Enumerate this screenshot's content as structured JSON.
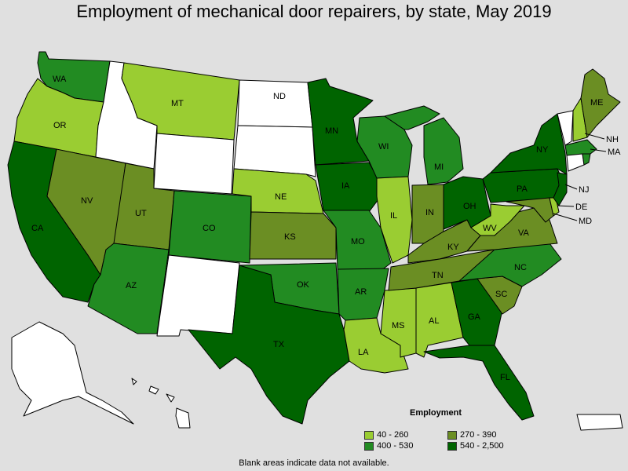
{
  "title": "Employment of mechanical door repairers, by state, May 2019",
  "footnote": "Blank areas indicate data not available.",
  "colors": {
    "background": "#e0e0e0",
    "none": "#ffffff",
    "c1": "#9acd32",
    "c2": "#6b8e23",
    "c3": "#228b22",
    "c4": "#006400"
  },
  "legend": {
    "title": "Employment",
    "items": [
      {
        "label": "40 - 260",
        "cls": "c1"
      },
      {
        "label": "270 - 390",
        "cls": "c2"
      },
      {
        "label": "400 - 530",
        "cls": "c3"
      },
      {
        "label": "540 - 2,500",
        "cls": "c4"
      }
    ]
  },
  "states": [
    {
      "abbr": "WA",
      "cls": "c3"
    },
    {
      "abbr": "OR",
      "cls": "c1"
    },
    {
      "abbr": "CA",
      "cls": "c4"
    },
    {
      "abbr": "ID",
      "cls": "none"
    },
    {
      "abbr": "NV",
      "cls": "c2"
    },
    {
      "abbr": "MT",
      "cls": "c1"
    },
    {
      "abbr": "WY",
      "cls": "none"
    },
    {
      "abbr": "UT",
      "cls": "c2"
    },
    {
      "abbr": "AZ",
      "cls": "c3"
    },
    {
      "abbr": "CO",
      "cls": "c3"
    },
    {
      "abbr": "NM",
      "cls": "none"
    },
    {
      "abbr": "ND",
      "cls": "none"
    },
    {
      "abbr": "SD",
      "cls": "none"
    },
    {
      "abbr": "NE",
      "cls": "c1"
    },
    {
      "abbr": "KS",
      "cls": "c2"
    },
    {
      "abbr": "OK",
      "cls": "c3"
    },
    {
      "abbr": "TX",
      "cls": "c4"
    },
    {
      "abbr": "MN",
      "cls": "c4"
    },
    {
      "abbr": "IA",
      "cls": "c4"
    },
    {
      "abbr": "MO",
      "cls": "c3"
    },
    {
      "abbr": "AR",
      "cls": "c3"
    },
    {
      "abbr": "LA",
      "cls": "c1"
    },
    {
      "abbr": "WI",
      "cls": "c3"
    },
    {
      "abbr": "IL",
      "cls": "c1"
    },
    {
      "abbr": "MS",
      "cls": "c1"
    },
    {
      "abbr": "MI",
      "cls": "c3"
    },
    {
      "abbr": "IN",
      "cls": "c2"
    },
    {
      "abbr": "KY",
      "cls": "c2"
    },
    {
      "abbr": "TN",
      "cls": "c2"
    },
    {
      "abbr": "AL",
      "cls": "c1"
    },
    {
      "abbr": "OH",
      "cls": "c4"
    },
    {
      "abbr": "GA",
      "cls": "c4"
    },
    {
      "abbr": "FL",
      "cls": "c4"
    },
    {
      "abbr": "SC",
      "cls": "c2"
    },
    {
      "abbr": "NC",
      "cls": "c3"
    },
    {
      "abbr": "VA",
      "cls": "c2"
    },
    {
      "abbr": "WV",
      "cls": "c1"
    },
    {
      "abbr": "PA",
      "cls": "c4"
    },
    {
      "abbr": "NY",
      "cls": "c4"
    },
    {
      "abbr": "ME",
      "cls": "c2"
    },
    {
      "abbr": "NH",
      "cls": "c1"
    },
    {
      "abbr": "VT",
      "cls": "none"
    },
    {
      "abbr": "MA",
      "cls": "c3"
    },
    {
      "abbr": "CT",
      "cls": "none"
    },
    {
      "abbr": "NJ",
      "cls": "c4"
    },
    {
      "abbr": "DE",
      "cls": "c1"
    },
    {
      "abbr": "MD",
      "cls": "c2"
    },
    {
      "abbr": "RI",
      "cls": "c3"
    },
    {
      "abbr": "AK",
      "cls": "none"
    },
    {
      "abbr": "HI",
      "cls": "none"
    },
    {
      "abbr": "PR",
      "cls": "none"
    }
  ]
}
